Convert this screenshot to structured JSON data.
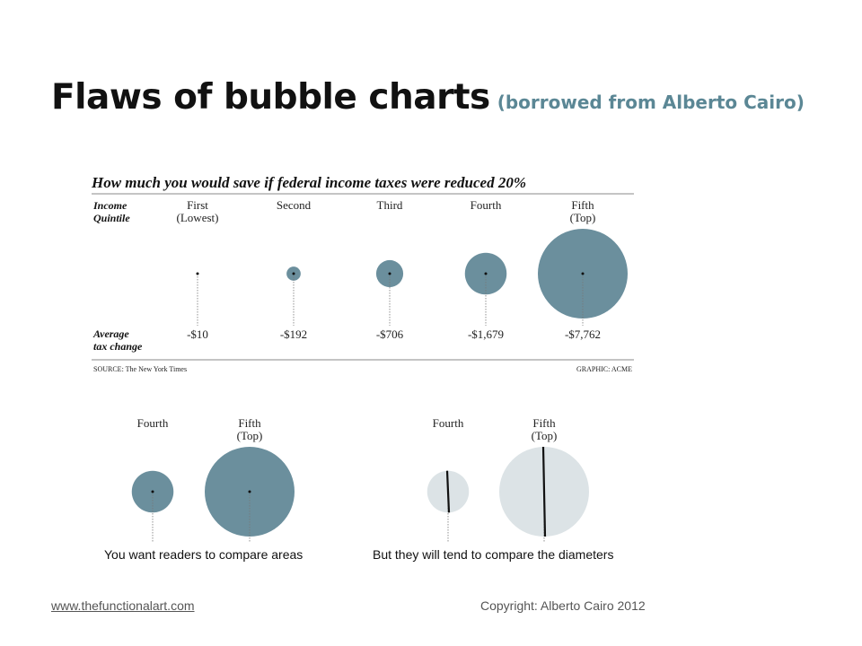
{
  "slide": {
    "title": "Flaws of bubble charts",
    "subtitle": "(borrowed from Alberto Cairo)"
  },
  "graphic": {
    "heading": "How much you would save if federal income taxes were reduced 20%",
    "row_label_top": [
      "Income",
      "Quintile"
    ],
    "row_label_bottom": [
      "Average",
      "tax change"
    ],
    "source": "SOURCE: The New York Times",
    "credit": "GRAPHIC: ACME",
    "bubble_color": "#6b8f9d"
  },
  "chart_data": {
    "type": "bubble",
    "categories": [
      [
        "First",
        "(Lowest)"
      ],
      [
        "Second"
      ],
      [
        "Third"
      ],
      [
        "Fourth"
      ],
      [
        "Fifth",
        "(Top)"
      ]
    ],
    "values": [
      -10,
      -192,
      -706,
      -1679,
      -7762
    ],
    "value_labels": [
      "-$10",
      "-$192",
      "-$706",
      "-$1,679",
      "-$7,762"
    ]
  },
  "examples": {
    "areas": {
      "labels": [
        [
          "Fourth"
        ],
        [
          "Fifth",
          "(Top)"
        ]
      ],
      "caption": "You want readers to compare areas",
      "color": "#6b8f9d"
    },
    "diameters": {
      "labels": [
        [
          "Fourth"
        ],
        [
          "Fifth",
          "(Top)"
        ]
      ],
      "caption": "But they will tend to compare the diameters",
      "color": "#dce3e6"
    }
  },
  "footer": {
    "link": "www.thefunctionalart.com",
    "copyright": "Copyright: Alberto Cairo 2012"
  }
}
